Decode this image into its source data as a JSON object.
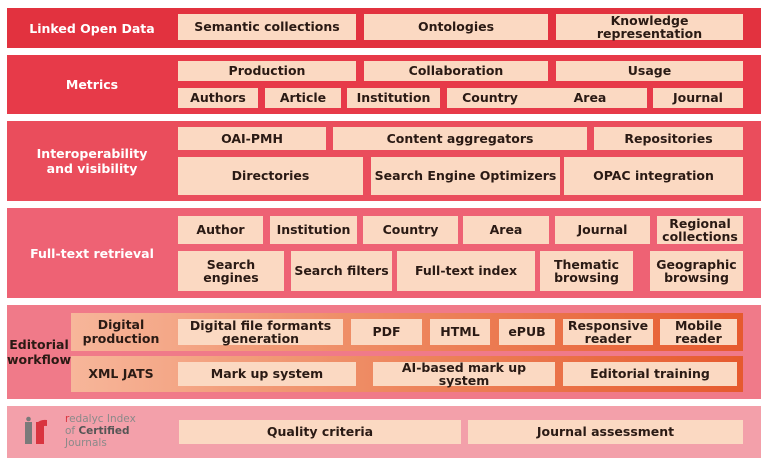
{
  "colors": {
    "lod": "#e2323f",
    "metrics": "#e73a49",
    "interop": "#ea4d5c",
    "fulltext": "#ee6274",
    "editorial": "#f07a89",
    "index": "#f3a0aa",
    "box": "#fbd9c2",
    "subband": "#e65a2e"
  },
  "linked_open_data": {
    "label": "Linked Open Data",
    "items": [
      "Semantic collections",
      "Ontologies",
      "Knowledge representation"
    ]
  },
  "metrics": {
    "label": "Metrics",
    "row1": [
      "Production",
      "Collaboration",
      "Usage"
    ],
    "row2": [
      "Authors",
      "Article",
      "Institution",
      "Country",
      "Area",
      "Journal"
    ]
  },
  "interoperability": {
    "label": "Interoperability\nand visibility",
    "row1": [
      "OAI-PMH",
      "Content aggregators",
      "Repositories"
    ],
    "row2": [
      "Directories",
      "Search Engine Optimizers",
      "OPAC integration"
    ]
  },
  "full_text": {
    "label": "Full-text retrieval",
    "row1": [
      "Author",
      "Institution",
      "Country",
      "Area",
      "Journal",
      "Regional\ncollections"
    ],
    "row2": [
      "Search engines",
      "Search filters",
      "Full-text index",
      "Thematic\nbrowsing",
      "Geographic\nbrowsing"
    ]
  },
  "editorial": {
    "label": "Editorial\nworkflow",
    "digital_label": "Digital\nproduction",
    "digital_items": [
      "Digital file formants\ngeneration",
      "PDF",
      "HTML",
      "ePUB",
      "Responsive\nreader",
      "Mobile\nreader"
    ],
    "xml_label": "XML JATS",
    "xml_items": [
      "Mark up system",
      "AI-based mark up system",
      "Editorial training"
    ]
  },
  "index": {
    "logo_line1_r": "r",
    "logo_line1_rest": "edalyc Index",
    "logo_line2_pre": "of ",
    "logo_line2_bold": "Certified",
    "logo_line3": "Journals",
    "items": [
      "Quality criteria",
      "Journal assessment"
    ]
  }
}
